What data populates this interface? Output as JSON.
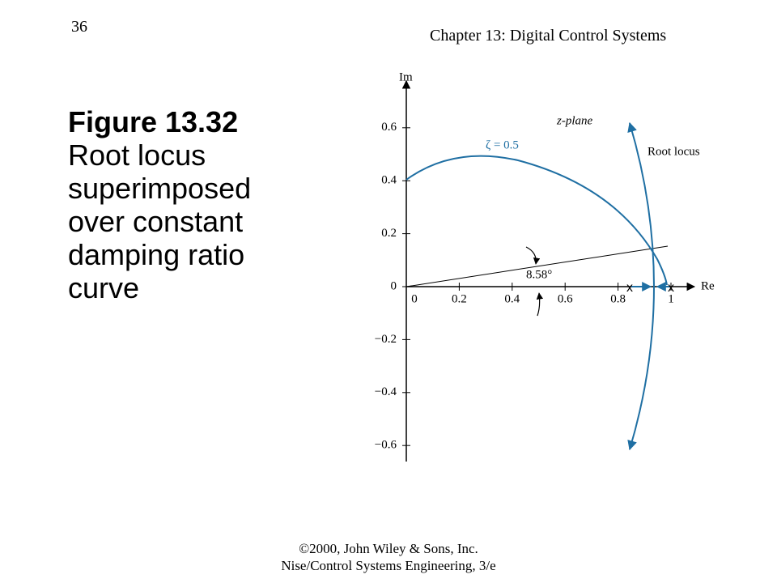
{
  "slide_number": "36",
  "header": "Chapter 13: Digital Control Systems",
  "figure_title": "Figure 13.32",
  "caption": [
    "Root locus",
    "superimposed",
    "over constant",
    "damping ratio",
    "curve"
  ],
  "footer": [
    "©2000, John Wiley & Sons, Inc.",
    "Nise/Control Systems Engineering, 3/e"
  ],
  "plot": {
    "x_axis_label": "Re",
    "y_axis_label": "Im",
    "xticks": [
      0,
      0.2,
      0.4,
      0.6,
      0.8,
      1
    ],
    "yticks": [
      0.6,
      0.4,
      0.2,
      0,
      {
        "value": -0.2,
        "label": "−0.2"
      },
      {
        "value": -0.4,
        "label": "−0.4"
      },
      {
        "value": -0.6,
        "label": "−0.6"
      }
    ],
    "plane_label": "z-plane",
    "curve_label": "ζ = 0.5",
    "locus_label": "Root locus",
    "angle_label": "8.58°",
    "poles": [
      "x",
      "x"
    ]
  }
}
